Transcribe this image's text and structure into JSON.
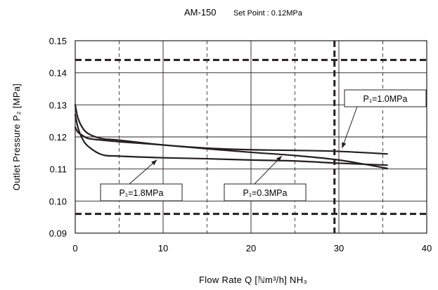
{
  "chart_data": {
    "type": "line",
    "title": "AM-150",
    "subtitle": "Set Point : 0.12MPa",
    "xlabel": "Flow Rate  Q  [ℕm³/h]  NH₃",
    "ylabel": "Outlet  Pressure  P₂ [MPa]",
    "xlim": [
      0,
      40
    ],
    "ylim": [
      0.09,
      0.15
    ],
    "x_ticks": [
      0,
      10,
      20,
      30,
      40
    ],
    "x_tick_labels": [
      "0",
      "10",
      "20",
      "30",
      "40"
    ],
    "y_ticks": [
      0.09,
      0.1,
      0.11,
      0.12,
      0.13,
      0.14,
      0.15
    ],
    "y_tick_labels": [
      "0.09",
      "0.10",
      "0.11",
      "0.12",
      "0.13",
      "0.14",
      "0.15"
    ],
    "x_minor_dashed": [
      5,
      15,
      25,
      35
    ],
    "grid": true,
    "limit_lines": {
      "horizontal": [
        0.144,
        0.096
      ],
      "vertical": [
        29.5
      ]
    },
    "series": [
      {
        "name": "P₁=1.0MPa",
        "x": [
          0,
          0.3,
          0.8,
          1.5,
          3,
          5,
          10,
          15,
          20,
          25,
          30,
          35.5
        ],
        "y": [
          0.13,
          0.126,
          0.123,
          0.121,
          0.1195,
          0.119,
          0.1175,
          0.1165,
          0.116,
          0.1158,
          0.1155,
          0.1147
        ]
      },
      {
        "name": "P₁=1.8MPa",
        "x": [
          0,
          0.3,
          0.8,
          1.5,
          3,
          5,
          10,
          15,
          20,
          25,
          30,
          35.5
        ],
        "y": [
          0.127,
          0.123,
          0.1195,
          0.117,
          0.1145,
          0.114,
          0.1135,
          0.1132,
          0.1128,
          0.1125,
          0.1118,
          0.1112
        ]
      },
      {
        "name": "P₁=0.3MPa",
        "x": [
          0,
          0.3,
          0.8,
          1.5,
          3,
          5,
          10,
          15,
          20,
          25,
          30,
          35.5
        ],
        "y": [
          0.123,
          0.1215,
          0.1205,
          0.1195,
          0.119,
          0.1185,
          0.1175,
          0.1163,
          0.1152,
          0.1142,
          0.1128,
          0.1102
        ]
      }
    ],
    "annotations": [
      {
        "text": "P₁=1.0MPa"
      },
      {
        "text": "P₁=1.8MPa"
      },
      {
        "text": "P₁=0.3MPa"
      }
    ]
  }
}
